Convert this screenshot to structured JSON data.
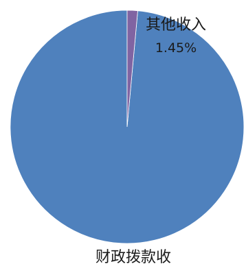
{
  "chart_data": {
    "type": "pie",
    "title": "",
    "start_angle_deg": 0,
    "direction": "counterclockwise",
    "slices": [
      {
        "label": "财政拨款收",
        "value": 98.55,
        "value_label": "",
        "color": "#4F81BD"
      },
      {
        "label": "其他收入",
        "value": 1.45,
        "value_label": "1.45%",
        "color": "#8064A2"
      }
    ],
    "legend": "none"
  }
}
